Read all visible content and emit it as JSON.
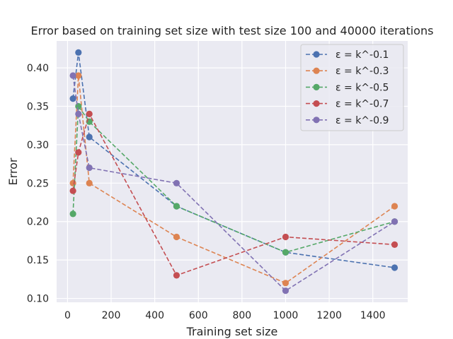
{
  "chart_data": {
    "type": "line",
    "title": "Error based on training set size with test size 100 and 40000 iterations",
    "xlabel": "Training set size",
    "ylabel": "Error",
    "xlim": [
      -50,
      1560
    ],
    "ylim": [
      0.095,
      0.435
    ],
    "xticks": [
      0,
      200,
      400,
      600,
      800,
      1000,
      1200,
      1400
    ],
    "xtick_labels": [
      "0",
      "200",
      "400",
      "600",
      "800",
      "1000",
      "1200",
      "1400"
    ],
    "yticks": [
      0.1,
      0.15,
      0.2,
      0.25,
      0.3,
      0.35,
      0.4
    ],
    "ytick_labels": [
      "0.10",
      "0.15",
      "0.20",
      "0.25",
      "0.30",
      "0.35",
      "0.40"
    ],
    "x": [
      25,
      50,
      100,
      500,
      1000,
      1500
    ],
    "grid": true,
    "legend_position": "top-right",
    "background": "#eaeaf2",
    "series": [
      {
        "name": "ε = k^-0.1",
        "color": "#4c72b0",
        "values": [
          0.36,
          0.42,
          0.31,
          0.22,
          0.16,
          0.14
        ]
      },
      {
        "name": "ε = k^-0.3",
        "color": "#dd8452",
        "values": [
          0.25,
          0.39,
          0.25,
          0.18,
          0.12,
          0.22
        ]
      },
      {
        "name": "ε = k^-0.5",
        "color": "#55a868",
        "values": [
          0.21,
          0.35,
          0.33,
          0.22,
          0.16,
          0.2
        ]
      },
      {
        "name": "ε = k^-0.7",
        "color": "#c44e52",
        "values": [
          0.24,
          0.29,
          0.34,
          0.13,
          0.18,
          0.17
        ]
      },
      {
        "name": "ε = k^-0.9",
        "color": "#8172b3",
        "values": [
          0.39,
          0.34,
          0.27,
          0.25,
          0.11,
          0.2
        ]
      }
    ]
  }
}
